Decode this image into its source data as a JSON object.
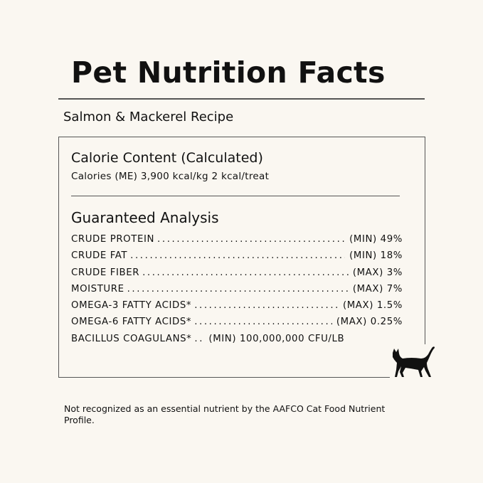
{
  "title": "Pet Nutrition Facts",
  "subtitle": "Salmon & Mackerel Recipe",
  "calorie": {
    "heading": "Calorie Content (Calculated)",
    "line": "Calories (ME) 3,900 kcal/kg 2 kcal/treat"
  },
  "analysis": {
    "heading": "Guaranteed Analysis",
    "rows": [
      {
        "label": "CRUDE PROTEIN",
        "value": "(MIN) 49%"
      },
      {
        "label": "CRUDE FAT",
        "value": "(MIN) 18%"
      },
      {
        "label": "CRUDE FIBER",
        "value": "(MAX) 3%"
      },
      {
        "label": "MOISTURE",
        "value": "(MAX) 7%"
      },
      {
        "label": "OMEGA-3 FATTY ACIDS*",
        "value": "(MAX) 1.5%"
      },
      {
        "label": "OMEGA-6 FATTY ACIDS*",
        "value": "(MAX) 0.25%"
      },
      {
        "label": "BACILLUS COAGULANS*",
        "value": "(MIN) 100,000,000 CFU/LB"
      }
    ]
  },
  "footnote": "Not recognized as an essential nutrient by the AAFCO Cat Food Nutrient Profile.",
  "icons": {
    "cat": "cat-silhouette-icon"
  },
  "colors": {
    "background": "#faf7f1",
    "text": "#111111",
    "rule": "#555555"
  }
}
